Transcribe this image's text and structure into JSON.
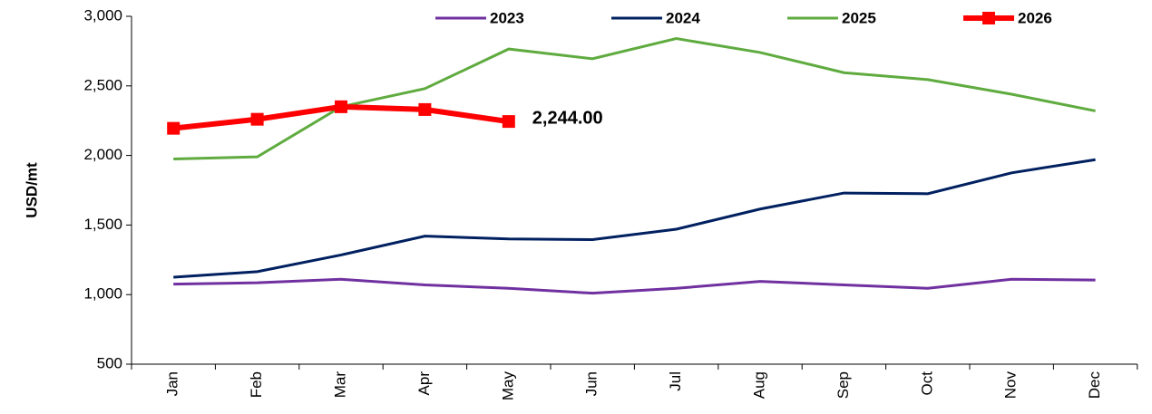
{
  "chart_data": {
    "type": "line",
    "y_label": "USD/mt",
    "categories": [
      "Jan",
      "Feb",
      "Mar",
      "Apr",
      "May",
      "Jun",
      "Jul",
      "Aug",
      "Sep",
      "Oct",
      "Nov",
      "Dec"
    ],
    "series": [
      {
        "name": "2023",
        "color": "#7030a0",
        "values": [
          1075,
          1085,
          1110,
          1070,
          1045,
          1010,
          1045,
          1095,
          1070,
          1045,
          1110,
          1105
        ]
      },
      {
        "name": "2024",
        "color": "#002060",
        "values": [
          1125,
          1165,
          1285,
          1420,
          1400,
          1395,
          1470,
          1615,
          1730,
          1725,
          1875,
          1970
        ]
      },
      {
        "name": "2025",
        "color": "#5fab3f",
        "values": [
          1975,
          1990,
          2350,
          2480,
          2765,
          2695,
          2840,
          2740,
          2595,
          2545,
          2440,
          2320
        ]
      },
      {
        "name": "2026",
        "color": "#ff0000",
        "marker": "square",
        "values": [
          2195,
          2260,
          2350,
          2330,
          2244,
          null,
          null,
          null,
          null,
          null,
          null,
          null
        ],
        "value_labels": [
          null,
          null,
          null,
          null,
          "2,244.00",
          null,
          null,
          null,
          null,
          null,
          null,
          null
        ]
      }
    ],
    "ylim": [
      500,
      3000
    ],
    "yticks": [
      500,
      {
        "value": 1000,
        "label": "1,000"
      },
      {
        "value": 1500,
        "label": "1,500"
      },
      {
        "value": 2000,
        "label": "2,000"
      },
      {
        "value": 2500,
        "label": "2,500"
      },
      {
        "value": 3000,
        "label": "3,000"
      }
    ],
    "grid": false,
    "legend": "top"
  }
}
